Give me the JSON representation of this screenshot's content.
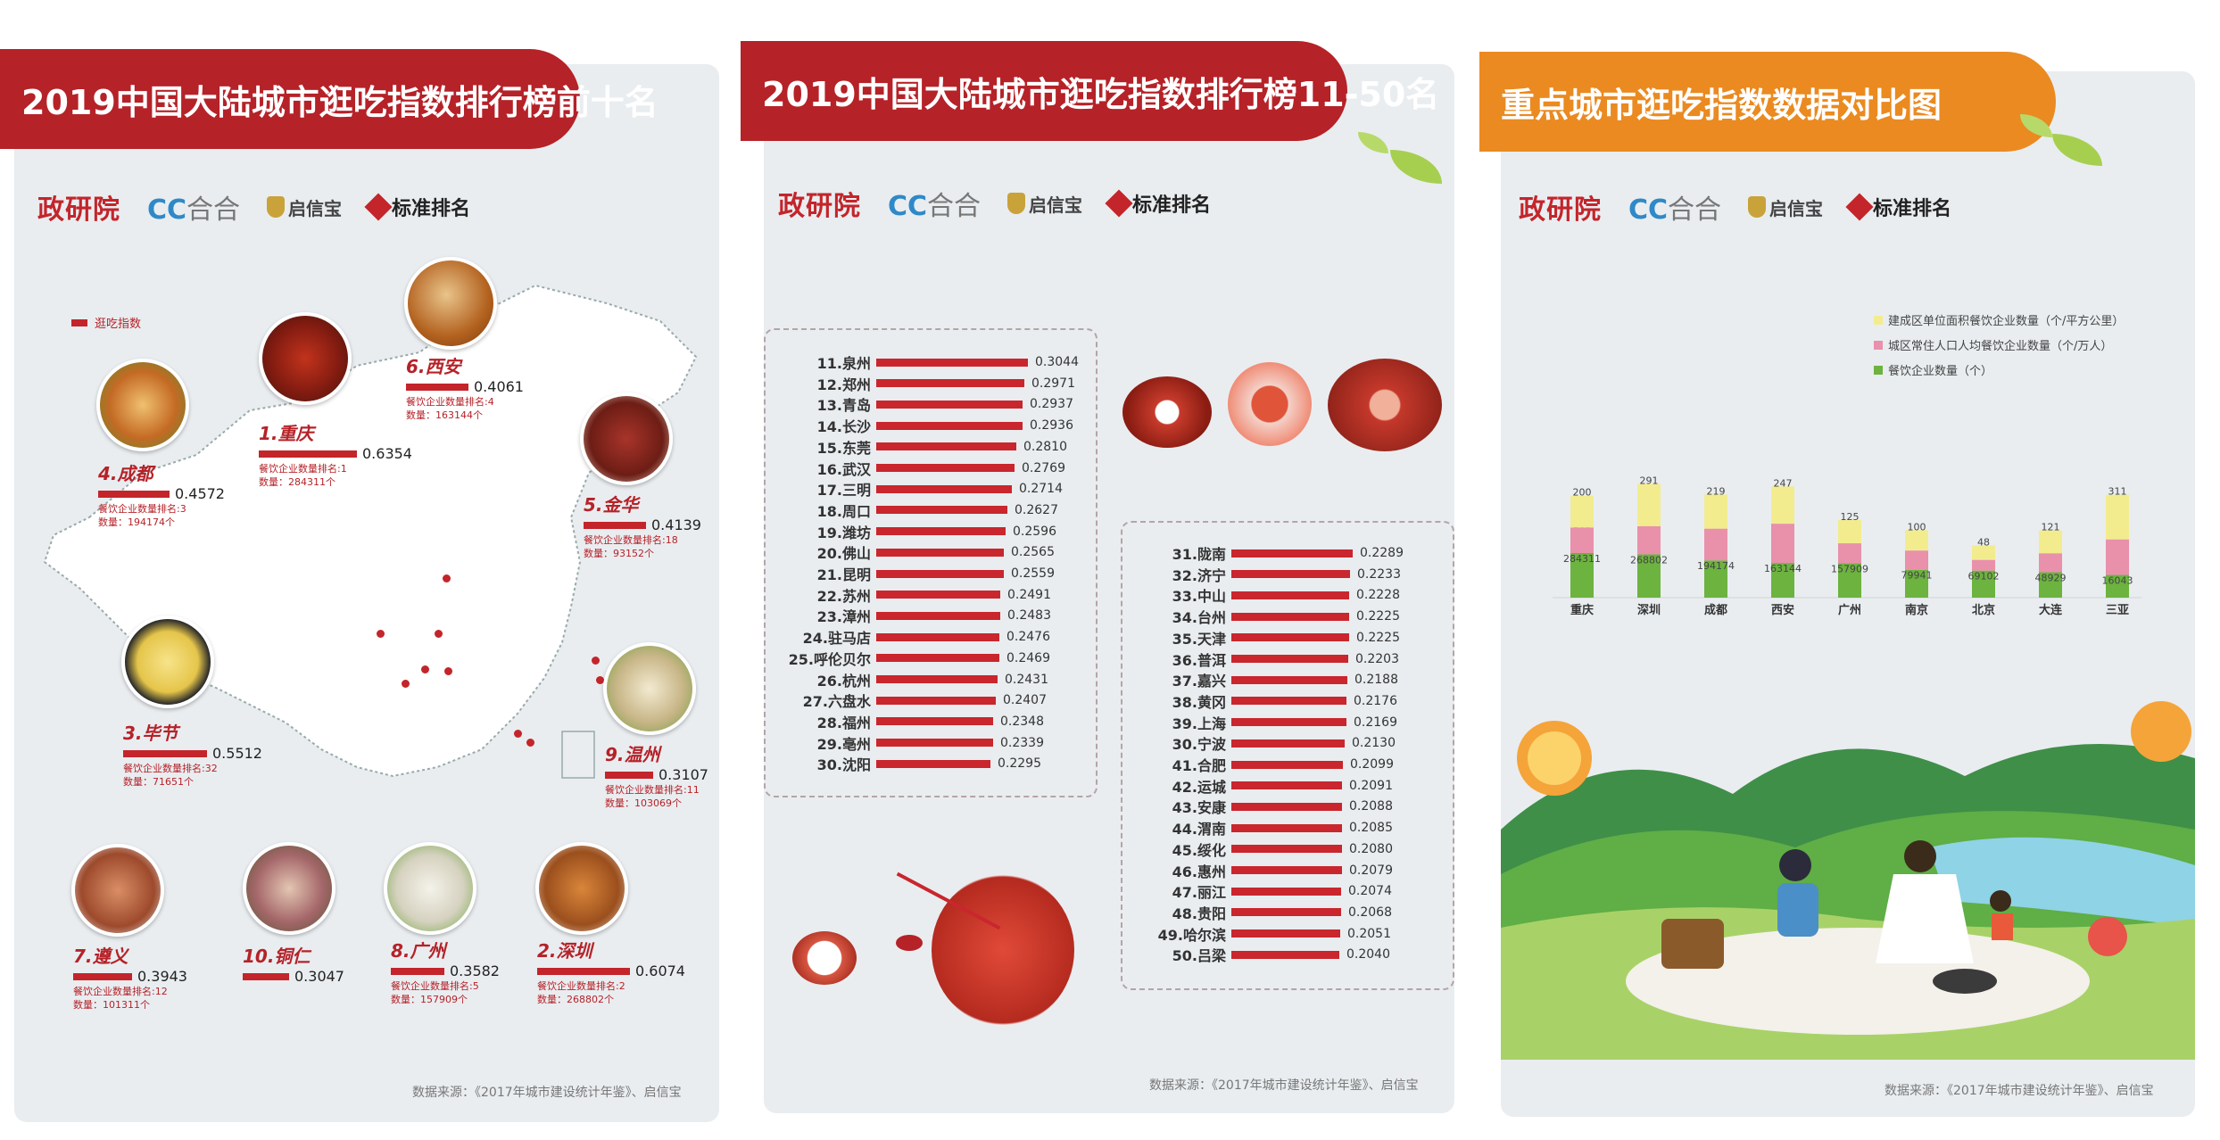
{
  "panel1": {
    "title": "2019中国大陆城市逛吃指数排行榜前十名",
    "legend": "逛吃指数",
    "source": "数据来源：《2017年城市建设统计年鉴》、启信宝",
    "cities": [
      {
        "name": "1.重庆",
        "value": "0.6354",
        "rank": "餐饮企业数量排名:1",
        "count": "数量：284311个"
      },
      {
        "name": "2.深圳",
        "value": "0.6074",
        "rank": "餐饮企业数量排名:2",
        "count": "数量：268802个"
      },
      {
        "name": "3.毕节",
        "value": "0.5512",
        "rank": "餐饮企业数量排名:32",
        "count": "数量：71651个"
      },
      {
        "name": "4.成都",
        "value": "0.4572",
        "rank": "餐饮企业数量排名:3",
        "count": "数量：194174个"
      },
      {
        "name": "5.金华",
        "value": "0.4139",
        "rank": "餐饮企业数量排名:18",
        "count": "数量：93152个"
      },
      {
        "name": "6.西安",
        "value": "0.4061",
        "rank": "餐饮企业数量排名:4",
        "count": "数量：163144个"
      },
      {
        "name": "7.遵义",
        "value": "0.3943",
        "rank": "餐饮企业数量排名:12",
        "count": "数量：101311个"
      },
      {
        "name": "8.广州",
        "value": "0.3582",
        "rank": "餐饮企业数量排名:5",
        "count": "数量：157909个"
      },
      {
        "name": "9.温州",
        "value": "0.3107",
        "rank": "餐饮企业数量排名:11",
        "count": "数量：103069个"
      },
      {
        "name": "10.铜仁",
        "value": "0.3047",
        "rank": "",
        "count": ""
      }
    ]
  },
  "panel2": {
    "title": "2019中国大陆城市逛吃指数排行榜11-50名",
    "source": "数据来源：《2017年城市建设统计年鉴》、启信宝",
    "list_a": [
      {
        "label": "11.泉州",
        "value": 0.3044
      },
      {
        "label": "12.郑州",
        "value": 0.2971
      },
      {
        "label": "13.青岛",
        "value": 0.2937
      },
      {
        "label": "14.长沙",
        "value": 0.2936
      },
      {
        "label": "15.东莞",
        "value": 0.281
      },
      {
        "label": "16.武汉",
        "value": 0.2769
      },
      {
        "label": "17.三明",
        "value": 0.2714
      },
      {
        "label": "18.周口",
        "value": 0.2627
      },
      {
        "label": "19.潍坊",
        "value": 0.2596
      },
      {
        "label": "20.佛山",
        "value": 0.2565
      },
      {
        "label": "21.昆明",
        "value": 0.2559
      },
      {
        "label": "22.苏州",
        "value": 0.2491
      },
      {
        "label": "23.漳州",
        "value": 0.2483
      },
      {
        "label": "24.驻马店",
        "value": 0.2476
      },
      {
        "label": "25.呼伦贝尔",
        "value": 0.2469
      },
      {
        "label": "26.杭州",
        "value": 0.2431
      },
      {
        "label": "27.六盘水",
        "value": 0.2407
      },
      {
        "label": "28.福州",
        "value": 0.2348
      },
      {
        "label": "29.亳州",
        "value": 0.2339
      },
      {
        "label": "30.沈阳",
        "value": 0.2295
      }
    ],
    "list_b": [
      {
        "label": "31.陇南",
        "value": 0.2289
      },
      {
        "label": "32.济宁",
        "value": 0.2233
      },
      {
        "label": "33.中山",
        "value": 0.2228
      },
      {
        "label": "34.台州",
        "value": 0.2225
      },
      {
        "label": "35.天津",
        "value": 0.2225
      },
      {
        "label": "36.普洱",
        "value": 0.2203
      },
      {
        "label": "37.嘉兴",
        "value": 0.2188
      },
      {
        "label": "38.黄冈",
        "value": 0.2176
      },
      {
        "label": "39.上海",
        "value": 0.2169
      },
      {
        "label": "30.宁波",
        "value": 0.213
      },
      {
        "label": "41.合肥",
        "value": 0.2099
      },
      {
        "label": "42.运城",
        "value": 0.2091
      },
      {
        "label": "43.安康",
        "value": 0.2088
      },
      {
        "label": "44.渭南",
        "value": 0.2085
      },
      {
        "label": "45.绥化",
        "value": 0.208
      },
      {
        "label": "46.惠州",
        "value": 0.2079
      },
      {
        "label": "47.丽江",
        "value": 0.2074
      },
      {
        "label": "48.贵阳",
        "value": 0.2068
      },
      {
        "label": "49.哈尔滨",
        "value": 0.2051
      },
      {
        "label": "50.吕梁",
        "value": 0.204
      }
    ]
  },
  "panel3": {
    "title": "重点城市逛吃指数数据对比图",
    "source": "数据来源：《2017年城市建设统计年鉴》、启信宝"
  },
  "logos": {
    "zhengyan": "政研院",
    "cc": "CC",
    "hehe": "合合",
    "qixin": "启信宝",
    "biaozhun": "标准排名"
  },
  "colors": {
    "red": "#b52228",
    "orange": "#ea8a20",
    "yellow": "#f2ec8f",
    "pink": "#e990ab",
    "green": "#6cb33f"
  },
  "chart_data": [
    {
      "type": "bar",
      "title": "2019中国大陆城市逛吃指数排行榜11-50名",
      "categories": [
        "11.泉州",
        "12.郑州",
        "13.青岛",
        "14.长沙",
        "15.东莞",
        "16.武汉",
        "17.三明",
        "18.周口",
        "19.潍坊",
        "20.佛山",
        "21.昆明",
        "22.苏州",
        "23.漳州",
        "24.驻马店",
        "25.呼伦贝尔",
        "26.杭州",
        "27.六盘水",
        "28.福州",
        "29.亳州",
        "30.沈阳",
        "31.陇南",
        "32.济宁",
        "33.中山",
        "34.台州",
        "35.天津",
        "36.普洱",
        "37.嘉兴",
        "38.黄冈",
        "39.上海",
        "30.宁波",
        "41.合肥",
        "42.运城",
        "43.安康",
        "44.渭南",
        "45.绥化",
        "46.惠州",
        "47.丽江",
        "48.贵阳",
        "49.哈尔滨",
        "50.吕梁"
      ],
      "values": [
        0.3044,
        0.2971,
        0.2937,
        0.2936,
        0.281,
        0.2769,
        0.2714,
        0.2627,
        0.2596,
        0.2565,
        0.2559,
        0.2491,
        0.2483,
        0.2476,
        0.2469,
        0.2431,
        0.2407,
        0.2348,
        0.2339,
        0.2295,
        0.2289,
        0.2233,
        0.2228,
        0.2225,
        0.2225,
        0.2203,
        0.2188,
        0.2176,
        0.2169,
        0.213,
        0.2099,
        0.2091,
        0.2088,
        0.2085,
        0.208,
        0.2079,
        0.2074,
        0.2068,
        0.2051,
        0.204
      ]
    },
    {
      "type": "bar",
      "stacked": true,
      "title": "重点城市逛吃指数数据对比图",
      "categories": [
        "重庆",
        "深圳",
        "成都",
        "西安",
        "广州",
        "南京",
        "北京",
        "大连",
        "三亚"
      ],
      "series": [
        {
          "name": "餐饮企业数量（个）",
          "color": "#6cb33f",
          "values": [
            284311,
            268802,
            194174,
            163144,
            157909,
            79941,
            69102,
            48929,
            16043
          ]
        },
        {
          "name": "城区常住人口人均餐饮企业数量（个/万人）",
          "color": "#e990ab",
          "values": [
            189,
            215,
            253,
            330,
            133,
            124,
            37,
            122,
            292
          ]
        },
        {
          "name": "建成区单位面积餐饮企业数量（个/平方公里）",
          "color": "#f2ec8f",
          "values": [
            200,
            291,
            219,
            247,
            125,
            100,
            48,
            121,
            311
          ]
        }
      ],
      "legend_position": "top-left"
    }
  ]
}
